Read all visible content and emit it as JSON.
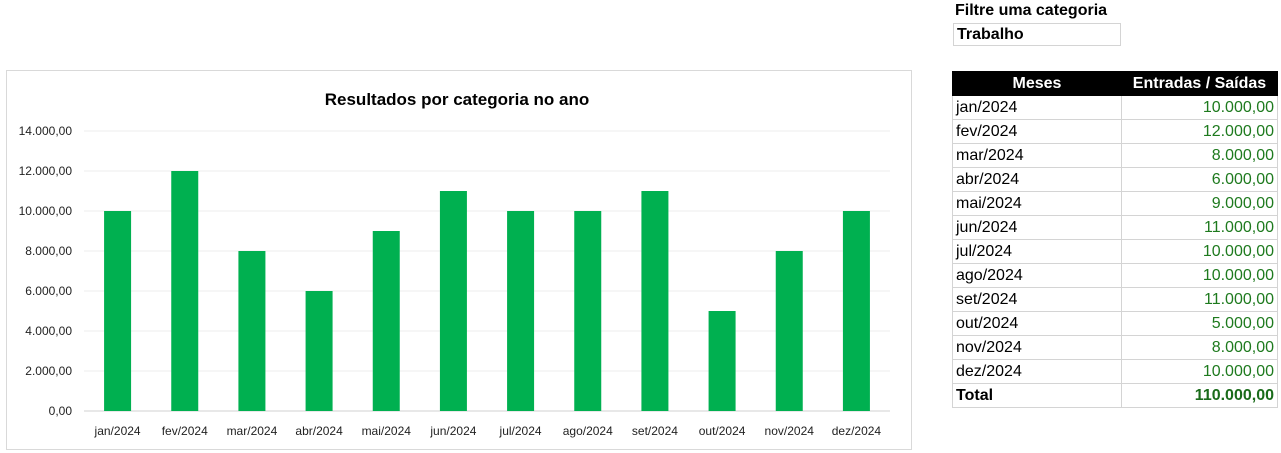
{
  "filter": {
    "label": "Filtre uma categoria",
    "value": "Trabalho"
  },
  "table": {
    "headers": [
      "Meses",
      "Entradas / Saídas"
    ],
    "rows": [
      {
        "month": "jan/2024",
        "value": "10.000,00"
      },
      {
        "month": "fev/2024",
        "value": "12.000,00"
      },
      {
        "month": "mar/2024",
        "value": "8.000,00"
      },
      {
        "month": "abr/2024",
        "value": "6.000,00"
      },
      {
        "month": "mai/2024",
        "value": "9.000,00"
      },
      {
        "month": "jun/2024",
        "value": "11.000,00"
      },
      {
        "month": "jul/2024",
        "value": "10.000,00"
      },
      {
        "month": "ago/2024",
        "value": "10.000,00"
      },
      {
        "month": "set/2024",
        "value": "11.000,00"
      },
      {
        "month": "out/2024",
        "value": "5.000,00"
      },
      {
        "month": "nov/2024",
        "value": "8.000,00"
      },
      {
        "month": "dez/2024",
        "value": "10.000,00"
      }
    ],
    "total": {
      "label": "Total",
      "value": "110.000,00"
    }
  },
  "colors": {
    "bar": "#00b050",
    "value_text": "#1e7a1e",
    "header_bg": "#000000"
  },
  "chart_data": {
    "type": "bar",
    "title": "Resultados por categoria no ano",
    "categories": [
      "jan/2024",
      "fev/2024",
      "mar/2024",
      "abr/2024",
      "mai/2024",
      "jun/2024",
      "jul/2024",
      "ago/2024",
      "set/2024",
      "out/2024",
      "nov/2024",
      "dez/2024"
    ],
    "values": [
      10000,
      12000,
      8000,
      6000,
      9000,
      11000,
      10000,
      10000,
      11000,
      5000,
      8000,
      10000
    ],
    "ylim": [
      0,
      14000
    ],
    "yticks": [
      0,
      2000,
      4000,
      6000,
      8000,
      10000,
      12000,
      14000
    ],
    "ytick_labels": [
      "0,00",
      "2.000,00",
      "4.000,00",
      "6.000,00",
      "8.000,00",
      "10.000,00",
      "12.000,00",
      "14.000,00"
    ],
    "xlabel": "",
    "ylabel": "",
    "grid": true
  }
}
